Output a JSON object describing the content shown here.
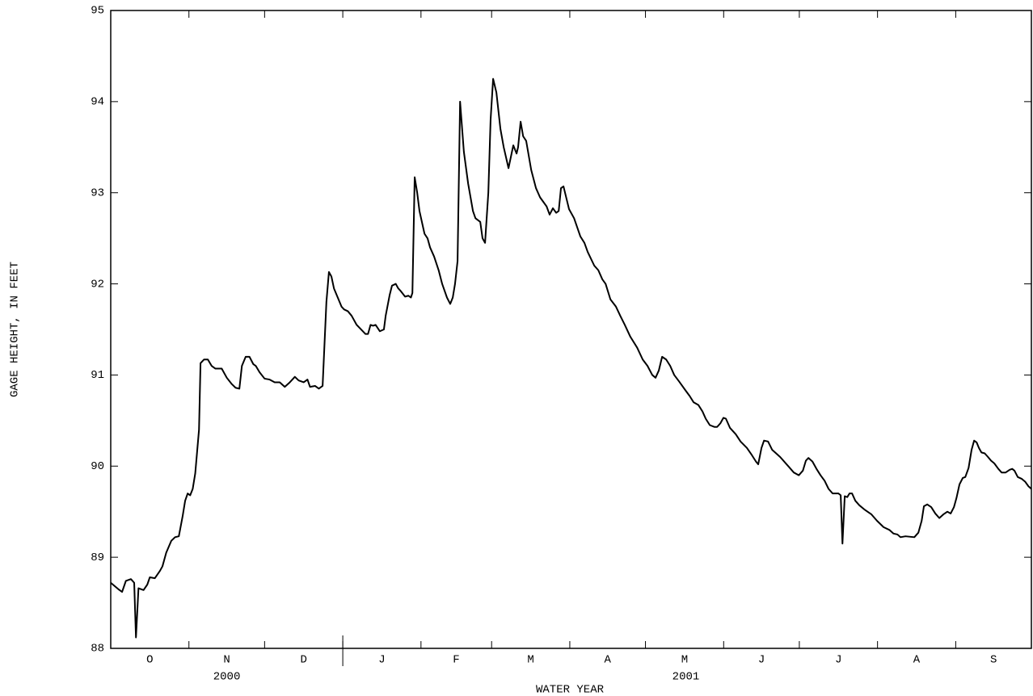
{
  "chart_data": {
    "type": "line",
    "x_label": "WATER YEAR",
    "y_label": "GAGE HEIGHT, IN FEET",
    "color": "#000000",
    "xlim": [
      0,
      365
    ],
    "ylim": [
      88,
      95
    ],
    "yticks": [
      88,
      89,
      90,
      91,
      92,
      93,
      94,
      95
    ],
    "xticks": [
      {
        "value": 15.5,
        "label": "O"
      },
      {
        "value": 46,
        "label": "N"
      },
      {
        "value": 76.5,
        "label": "D"
      },
      {
        "value": 107.5,
        "label": "J"
      },
      {
        "value": 137,
        "label": "F"
      },
      {
        "value": 166.5,
        "label": "M"
      },
      {
        "value": 197,
        "label": "A"
      },
      {
        "value": 227.5,
        "label": "M"
      },
      {
        "value": 258,
        "label": "J"
      },
      {
        "value": 288.5,
        "label": "J"
      },
      {
        "value": 319.5,
        "label": "A"
      },
      {
        "value": 350,
        "label": "S"
      }
    ],
    "month_bounds": [
      0,
      31,
      61,
      92,
      123,
      151,
      182,
      212,
      243,
      273,
      304,
      335,
      365
    ],
    "year_labels": [
      {
        "value": 46,
        "label": "2000"
      },
      {
        "value": 228,
        "label": "2001"
      }
    ],
    "year_break": 92,
    "x": [
      0,
      3,
      4.5,
      6,
      8,
      9.3,
      10,
      11,
      13,
      14.5,
      15.5,
      17.5,
      19.5,
      20.5,
      22,
      24,
      25.5,
      27,
      28.5,
      29.5,
      30.5,
      31.5,
      32.5,
      33.5,
      35,
      35.6,
      37,
      38.5,
      40,
      41.5,
      44,
      46,
      48,
      49.5,
      51,
      52,
      53.5,
      55,
      56.5,
      57.5,
      59,
      61,
      63,
      65,
      67,
      69,
      71,
      73,
      74.5,
      76.5,
      78,
      79,
      81,
      82.5,
      84,
      85.5,
      86.5,
      87.5,
      88.5,
      90,
      91.5,
      92.5,
      94,
      95.5,
      97.5,
      101,
      102,
      103,
      104,
      105,
      106.7,
      108.3,
      109,
      110.6,
      111.5,
      113,
      114,
      115,
      116.7,
      118,
      119,
      119.6,
      120.5,
      121.5,
      122.4,
      124.4,
      125.6,
      126.6,
      128.2,
      130,
      131.4,
      133.3,
      134.6,
      135.6,
      136.5,
      137.5,
      138.5,
      140,
      141.7,
      143.6,
      144.6,
      146.5,
      147.4,
      148.4,
      149.7,
      150.6,
      151.6,
      152.9,
      154.5,
      155.8,
      157.7,
      159.6,
      160.9,
      161.5,
      162.5,
      163.5,
      164.7,
      166.7,
      168.6,
      170.2,
      171.5,
      172.8,
      174,
      175.3,
      176.6,
      177.6,
      178.5,
      179.5,
      181.7,
      183.7,
      186.2,
      187.8,
      189.1,
      191.7,
      193.3,
      194.9,
      196.2,
      198.1,
      200.3,
      202,
      203.8,
      206,
      208.7,
      210.9,
      212.8,
      214.7,
      216,
      217.3,
      218.6,
      220.2,
      221.8,
      223.4,
      225.3,
      227.9,
      229.5,
      231.1,
      233,
      234.6,
      235.9,
      237.5,
      239.4,
      240.4,
      241.7,
      242.9,
      243.9,
      245.5,
      247.8,
      249.7,
      252.2,
      254.2,
      255.8,
      256.7,
      258,
      259,
      260.6,
      262.2,
      265.4,
      268.6,
      270.8,
      272.8,
      274.4,
      275.6,
      276.6,
      278.2,
      279.8,
      281.4,
      283,
      284.6,
      286.2,
      288.5,
      289.4,
      290.1,
      291,
      292,
      292.9,
      293.9,
      295.2,
      296.8,
      299,
      301.6,
      303.8,
      306.4,
      308.7,
      310.3,
      311.9,
      313.1,
      315.1,
      318.6,
      320.2,
      321.5,
      322.4,
      323.7,
      325.3,
      326.9,
      328.5,
      330.1,
      331.7,
      333,
      334.3,
      335.3,
      336.5,
      337.8,
      338.8,
      340.1,
      341.3,
      342.3,
      343.3,
      344.2,
      345.2,
      346.5,
      347.8,
      349,
      350.3,
      351.9,
      353.2,
      354.8,
      356.4,
      357.4,
      358.3,
      359.6,
      361.2,
      362.5,
      363.8,
      365
    ],
    "values": [
      88.72,
      88.65,
      88.62,
      88.74,
      88.76,
      88.72,
      88.12,
      88.66,
      88.64,
      88.7,
      88.78,
      88.77,
      88.85,
      88.9,
      89.05,
      89.18,
      89.22,
      89.23,
      89.45,
      89.62,
      89.7,
      89.68,
      89.75,
      89.92,
      90.4,
      91.13,
      91.17,
      91.17,
      91.1,
      91.07,
      91.07,
      90.97,
      90.9,
      90.86,
      90.85,
      91.1,
      91.2,
      91.2,
      91.12,
      91.1,
      91.03,
      90.96,
      90.95,
      90.92,
      90.92,
      90.87,
      90.92,
      90.98,
      90.94,
      90.92,
      90.95,
      90.87,
      90.88,
      90.85,
      90.88,
      91.8,
      92.13,
      92.08,
      91.95,
      91.85,
      91.75,
      91.72,
      91.7,
      91.65,
      91.55,
      91.45,
      91.45,
      91.55,
      91.54,
      91.55,
      91.48,
      91.5,
      91.65,
      91.88,
      91.98,
      92.0,
      91.95,
      91.92,
      91.86,
      91.87,
      91.85,
      91.9,
      93.17,
      93.0,
      92.8,
      92.55,
      92.5,
      92.4,
      92.3,
      92.15,
      92.0,
      91.85,
      91.78,
      91.85,
      92.0,
      92.25,
      94.0,
      93.45,
      93.1,
      92.8,
      92.72,
      92.68,
      92.5,
      92.45,
      93.0,
      93.8,
      94.25,
      94.1,
      93.7,
      93.5,
      93.27,
      93.52,
      93.43,
      93.5,
      93.78,
      93.62,
      93.57,
      93.25,
      93.05,
      92.95,
      92.9,
      92.85,
      92.76,
      92.83,
      92.78,
      92.8,
      93.05,
      93.07,
      92.82,
      92.72,
      92.52,
      92.45,
      92.35,
      92.2,
      92.15,
      92.05,
      92.0,
      91.83,
      91.75,
      91.65,
      91.55,
      91.42,
      91.3,
      91.17,
      91.1,
      91.0,
      90.97,
      91.05,
      91.2,
      91.17,
      91.1,
      91.0,
      90.93,
      90.83,
      90.77,
      90.7,
      90.67,
      90.6,
      90.52,
      90.45,
      90.43,
      90.43,
      90.47,
      90.53,
      90.52,
      90.42,
      90.35,
      90.27,
      90.2,
      90.12,
      90.05,
      90.02,
      90.2,
      90.28,
      90.27,
      90.18,
      90.1,
      90.0,
      89.93,
      89.9,
      89.95,
      90.06,
      90.09,
      90.05,
      89.97,
      89.9,
      89.84,
      89.75,
      89.7,
      89.7,
      89.68,
      89.15,
      89.67,
      89.66,
      89.7,
      89.7,
      89.62,
      89.57,
      89.52,
      89.47,
      89.4,
      89.33,
      89.3,
      89.26,
      89.25,
      89.22,
      89.23,
      89.22,
      89.27,
      89.4,
      89.56,
      89.58,
      89.55,
      89.48,
      89.43,
      89.47,
      89.5,
      89.48,
      89.55,
      89.65,
      89.8,
      89.87,
      89.88,
      89.98,
      90.18,
      90.28,
      90.26,
      90.2,
      90.15,
      90.14,
      90.1,
      90.06,
      90.03,
      89.97,
      89.93,
      89.93,
      89.96,
      89.97,
      89.95,
      89.88,
      89.86,
      89.83,
      89.78,
      89.75
    ]
  }
}
